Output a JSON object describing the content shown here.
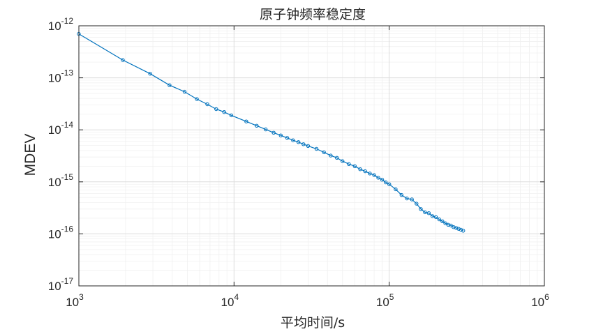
{
  "chart_data": {
    "type": "line",
    "title": "原子钟频率稳定度",
    "xlabel": "平均时间/s",
    "ylabel": "MDEV",
    "xscale": "log",
    "yscale": "log",
    "xlim": [
      1000,
      1000000
    ],
    "ylim": [
      1e-17,
      1e-12
    ],
    "x_ticks": [
      {
        "base": "10",
        "exp": "3"
      },
      {
        "base": "10",
        "exp": "4"
      },
      {
        "base": "10",
        "exp": "5"
      },
      {
        "base": "10",
        "exp": "6"
      }
    ],
    "y_ticks": [
      {
        "base": "10",
        "exp": "-12"
      },
      {
        "base": "10",
        "exp": "-13"
      },
      {
        "base": "10",
        "exp": "-14"
      },
      {
        "base": "10",
        "exp": "-15"
      },
      {
        "base": "10",
        "exp": "-16"
      },
      {
        "base": "10",
        "exp": "-17"
      }
    ],
    "grid": true,
    "minor_grid": true,
    "marker": "circle",
    "series_color": "#0072bd",
    "series": [
      {
        "x": [
          960,
          1920,
          2880,
          3840,
          4800,
          5760,
          6720,
          7680,
          8640,
          9600,
          12000,
          14000,
          16000,
          18000,
          20000,
          22000,
          24000,
          26000,
          28000,
          30000,
          34000,
          38000,
          42000,
          46000,
          50000,
          55000,
          60000,
          65000,
          70000,
          75000,
          80000,
          85000,
          90000,
          95000,
          100000,
          110000,
          120000,
          130000,
          140000,
          150000,
          160000,
          170000,
          180000,
          190000,
          200000,
          210000,
          220000,
          230000,
          240000,
          250000,
          260000,
          270000,
          280000,
          290000,
          300000
        ],
        "y": [
          7e-13,
          2.2e-13,
          1.2e-13,
          7.2e-14,
          5.4e-14,
          3.9e-14,
          3.1e-14,
          2.5e-14,
          2.2e-14,
          1.9e-14,
          1.45e-14,
          1.2e-14,
          1.02e-14,
          8.8e-15,
          7.8e-15,
          7e-15,
          6.3e-15,
          5.8e-15,
          5.3e-15,
          4.9e-15,
          4.3e-15,
          3.7e-15,
          3.2e-15,
          2.9e-15,
          2.5e-15,
          2.2e-15,
          2e-15,
          1.75e-15,
          1.6e-15,
          1.45e-15,
          1.35e-15,
          1.2e-15,
          1.1e-15,
          9.8e-16,
          9e-16,
          7.2e-16,
          5.6e-16,
          4.8e-16,
          4.6e-16,
          3.8e-16,
          3e-16,
          2.6e-16,
          2.5e-16,
          2.2e-16,
          2.1e-16,
          1.9e-16,
          1.75e-16,
          1.6e-16,
          1.5e-16,
          1.45e-16,
          1.35e-16,
          1.3e-16,
          1.25e-16,
          1.2e-16,
          1.15e-16
        ]
      }
    ]
  }
}
